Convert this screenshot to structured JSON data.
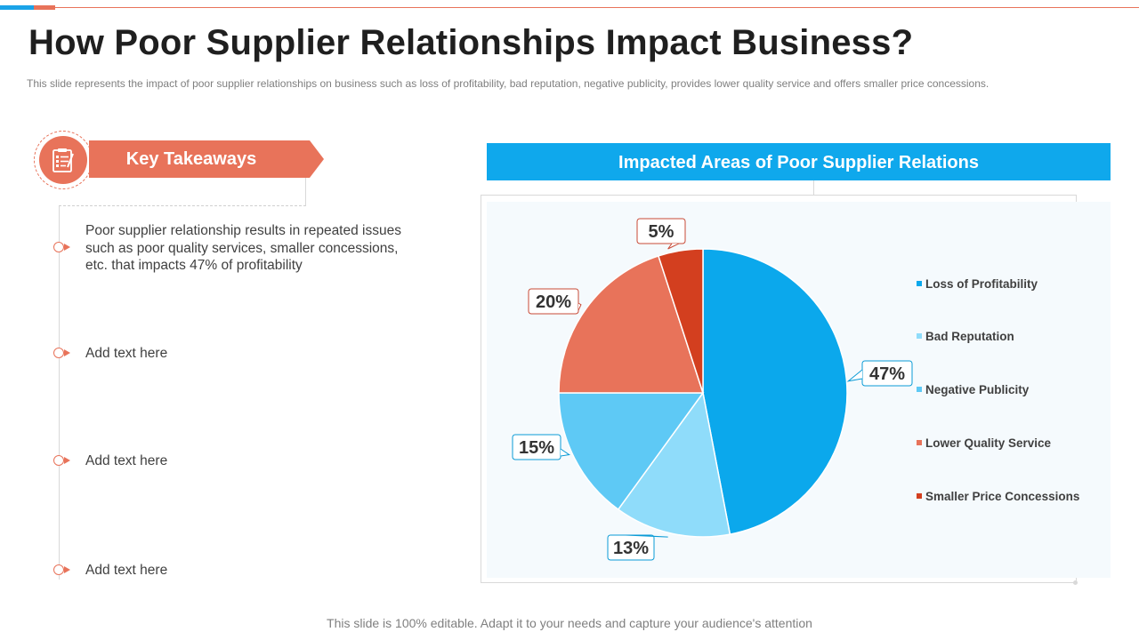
{
  "slide": {
    "title": "How Poor Supplier Relationships Impact Business?",
    "subtitle": "This slide represents the impact of poor supplier relationships on business such as loss of profitability, bad reputation, negative  publicity, provides  lower quality service  and offers  smaller price concessions.",
    "footer": "This slide is 100% editable. Adapt it to your needs and capture your audience's attention"
  },
  "takeaways": {
    "heading": "Key Takeaways",
    "icon": "checklist-icon",
    "items": [
      "Poor supplier relationship results  in repeated issues such as poor quality services, smaller concessions, etc. that impacts  47% of profitability",
      "Add text here",
      "Add text here",
      "Add text here"
    ]
  },
  "chart_data": {
    "type": "pie",
    "title": "Impacted Areas of Poor Supplier Relations",
    "categories": [
      "Loss of Profitability",
      "Bad Reputation",
      "Negative Publicity",
      "Lower Quality Service",
      "Smaller Price Concessions"
    ],
    "values": [
      47,
      13,
      15,
      20,
      5
    ],
    "labels": [
      "47%",
      "13%",
      "15%",
      "20%",
      "5%"
    ],
    "colors": [
      "#0ba8ec",
      "#8fdcfa",
      "#5ec9f5",
      "#e8735a",
      "#d33f1f"
    ],
    "callout_borders": [
      "#0a9bd6",
      "#0a9bd6",
      "#0a9bd6",
      "#c84a36",
      "#c84a36"
    ],
    "legend_position": "right"
  }
}
